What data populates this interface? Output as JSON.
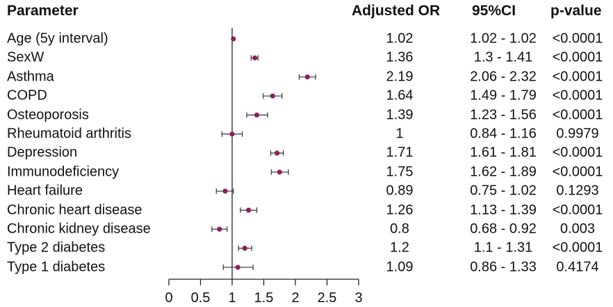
{
  "headers": {
    "parameter": "Parameter",
    "or": "Adjusted OR",
    "ci": "95%CI",
    "p": "p-value"
  },
  "chart_data": {
    "type": "forest",
    "xlim": [
      0,
      3
    ],
    "xticks": [
      "0",
      "0.5",
      "1",
      "1.5",
      "2",
      "2.5",
      "3"
    ],
    "reference_line": 1,
    "point_color": "#8b1f5e",
    "rows": [
      {
        "label": "Age (5y interval)",
        "or": 1.02,
        "lo": 1.02,
        "hi": 1.02,
        "or_text": "1.02",
        "ci_text": "1.02 - 1.02",
        "p_text": "<0.0001"
      },
      {
        "label": "SexW",
        "or": 1.36,
        "lo": 1.3,
        "hi": 1.41,
        "or_text": "1.36",
        "ci_text": "1.3 - 1.41",
        "p_text": "<0.0001"
      },
      {
        "label": "Asthma",
        "or": 2.19,
        "lo": 2.06,
        "hi": 2.32,
        "or_text": "2.19",
        "ci_text": "2.06 - 2.32",
        "p_text": "<0.0001"
      },
      {
        "label": "COPD",
        "or": 1.64,
        "lo": 1.49,
        "hi": 1.79,
        "or_text": "1.64",
        "ci_text": "1.49 - 1.79",
        "p_text": "<0.0001"
      },
      {
        "label": "Osteoporosis",
        "or": 1.39,
        "lo": 1.23,
        "hi": 1.56,
        "or_text": "1.39",
        "ci_text": "1.23 - 1.56",
        "p_text": "<0.0001"
      },
      {
        "label": "Rheumatoid arthritis",
        "or": 1,
        "lo": 0.84,
        "hi": 1.16,
        "or_text": "1",
        "ci_text": "0.84 - 1.16",
        "p_text": "0.9979"
      },
      {
        "label": "Depression",
        "or": 1.71,
        "lo": 1.61,
        "hi": 1.81,
        "or_text": "1.71",
        "ci_text": "1.61 - 1.81",
        "p_text": "<0.0001"
      },
      {
        "label": "Immunodeficiency",
        "or": 1.75,
        "lo": 1.62,
        "hi": 1.89,
        "or_text": "1.75",
        "ci_text": "1.62 - 1.89",
        "p_text": "<0.0001"
      },
      {
        "label": "Heart failure",
        "or": 0.89,
        "lo": 0.75,
        "hi": 1.02,
        "or_text": "0.89",
        "ci_text": "0.75 - 1.02",
        "p_text": "0.1293"
      },
      {
        "label": "Chronic heart disease",
        "or": 1.26,
        "lo": 1.13,
        "hi": 1.39,
        "or_text": "1.26",
        "ci_text": "1.13 - 1.39",
        "p_text": "<0.0001"
      },
      {
        "label": "Chronic kidney disease",
        "or": 0.8,
        "lo": 0.68,
        "hi": 0.92,
        "or_text": "0.8",
        "ci_text": "0.68 - 0.92",
        "p_text": "0.003"
      },
      {
        "label": "Type 2 diabetes",
        "or": 1.2,
        "lo": 1.1,
        "hi": 1.31,
        "or_text": "1.2",
        "ci_text": "1.1 - 1.31",
        "p_text": "<0.0001"
      },
      {
        "label": "Type 1 diabetes",
        "or": 1.09,
        "lo": 0.86,
        "hi": 1.33,
        "or_text": "1.09",
        "ci_text": "0.86 - 1.33",
        "p_text": "0.4174"
      }
    ]
  }
}
